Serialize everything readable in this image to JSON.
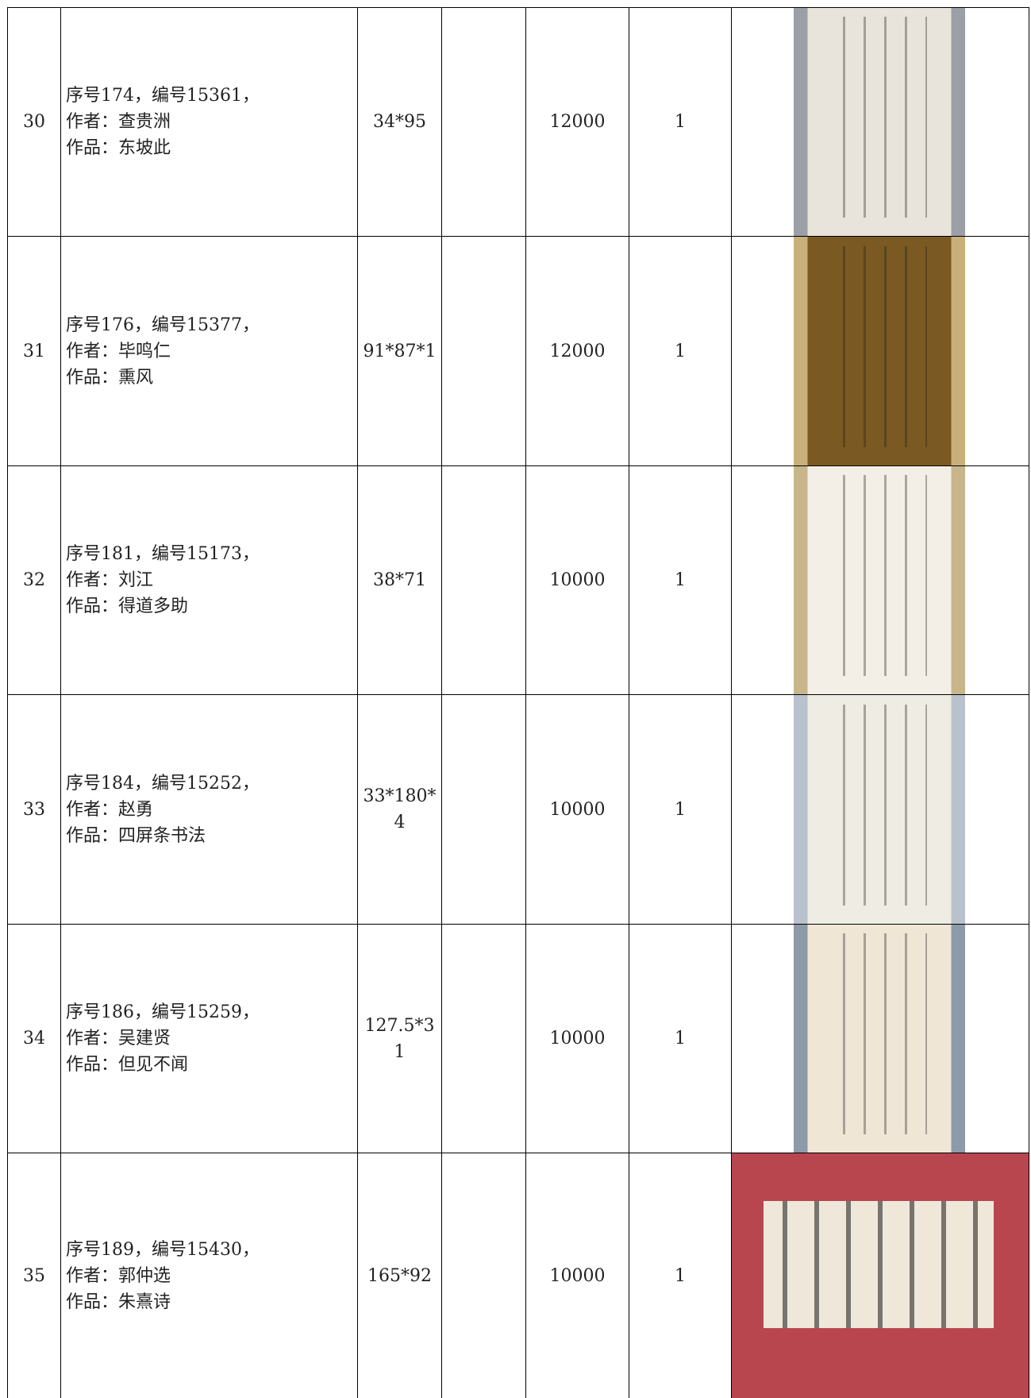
{
  "table": {
    "rows": [
      {
        "no": "30",
        "desc": [
          "序号174，编号15361，",
          "作者：查贵洲",
          "作品：东坡此"
        ],
        "size": "34*95",
        "price": "12000",
        "qty": "1"
      },
      {
        "no": "31",
        "desc": [
          "序号176，编号15377，",
          "作者：毕鸣仁",
          "作品：熏风"
        ],
        "size": "91*87*1",
        "price": "12000",
        "qty": "1"
      },
      {
        "no": "32",
        "desc": [
          "序号181，编号15173，",
          "作者：刘江",
          "作品：得道多助"
        ],
        "size": "38*71",
        "price": "10000",
        "qty": "1"
      },
      {
        "no": "33",
        "desc": [
          "序号184，编号15252，",
          "作者：赵勇",
          "作品：四屏条书法"
        ],
        "size": "33*180*4",
        "price": "10000",
        "qty": "1"
      },
      {
        "no": "34",
        "desc": [
          "序号186，编号15259，",
          "作者：吴建贤",
          "作品：但见不闻"
        ],
        "size": "127.5*31",
        "price": "10000",
        "qty": "1"
      },
      {
        "no": "35",
        "desc": [
          "序号189，编号15430，",
          "作者：郭仲选",
          "作品：朱熹诗"
        ],
        "size": "165*92",
        "price": "10000",
        "qty": "1"
      }
    ]
  }
}
